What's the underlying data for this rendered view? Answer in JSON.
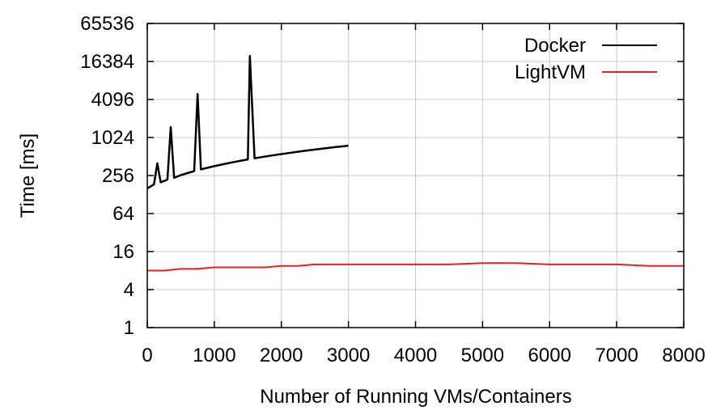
{
  "chart_data": {
    "type": "line",
    "title": "",
    "xlabel": "Number of Running VMs/Containers",
    "ylabel": "Time [ms]",
    "xlim": [
      0,
      8000
    ],
    "ylim": [
      1,
      65536
    ],
    "yscale": "log2",
    "grid": true,
    "legend": "top-right",
    "xticks": [
      0,
      1000,
      2000,
      3000,
      4000,
      5000,
      6000,
      7000,
      8000
    ],
    "xtick_labels": [
      "0",
      "1000",
      "2000",
      "3000",
      "4000",
      "5000",
      "6000",
      "7000",
      "8000"
    ],
    "yticks": [
      1,
      4,
      16,
      64,
      256,
      1024,
      4096,
      16384,
      65536
    ],
    "ytick_labels": [
      "1",
      "4",
      "16",
      "64",
      "256",
      "1024",
      "4096",
      "16384",
      "65536"
    ],
    "series": [
      {
        "name": "Docker",
        "color": "#000000",
        "x": [
          0,
          100,
          150,
          200,
          300,
          350,
          400,
          500,
          600,
          700,
          750,
          800,
          900,
          1000,
          1100,
          1200,
          1300,
          1400,
          1500,
          1530,
          1600,
          1700,
          1800,
          1900,
          2000,
          2100,
          2200,
          2300,
          2400,
          2500,
          2600,
          2700,
          2800,
          2900,
          3000
        ],
        "y": [
          160,
          185,
          400,
          200,
          220,
          1500,
          235,
          260,
          280,
          300,
          5000,
          320,
          340,
          360,
          380,
          400,
          420,
          440,
          460,
          20000,
          480,
          500,
          520,
          540,
          560,
          580,
          600,
          620,
          640,
          660,
          680,
          700,
          720,
          740,
          760
        ]
      },
      {
        "name": "LightVM",
        "color": "#ee1c25",
        "x": [
          0,
          250,
          500,
          750,
          1000,
          1250,
          1500,
          1750,
          2000,
          2250,
          2500,
          2750,
          3000,
          3500,
          4000,
          4500,
          5000,
          5500,
          6000,
          6500,
          7000,
          7500,
          8000
        ],
        "y": [
          8,
          8,
          8.5,
          8.5,
          9,
          9,
          9,
          9,
          9.5,
          9.5,
          10,
          10,
          10,
          10,
          10,
          10,
          10.5,
          10.5,
          10,
          10,
          10,
          9.5,
          9.5
        ]
      }
    ]
  }
}
